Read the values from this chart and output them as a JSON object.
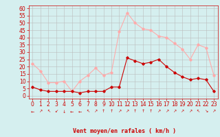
{
  "hours": [
    0,
    1,
    2,
    3,
    4,
    5,
    6,
    7,
    8,
    9,
    10,
    11,
    12,
    13,
    14,
    15,
    16,
    17,
    18,
    19,
    20,
    21,
    22,
    23
  ],
  "avg_wind": [
    6,
    4,
    3,
    3,
    3,
    3,
    2,
    3,
    3,
    3,
    6,
    6,
    26,
    24,
    22,
    23,
    25,
    20,
    16,
    13,
    11,
    12,
    11,
    3
  ],
  "gust_wind": [
    22,
    17,
    9,
    9,
    10,
    3,
    10,
    14,
    19,
    14,
    16,
    44,
    57,
    50,
    46,
    45,
    41,
    40,
    36,
    32,
    25,
    35,
    33,
    14
  ],
  "avg_color": "#cc0000",
  "gust_color": "#ffaaaa",
  "bg_color": "#d5efef",
  "grid_color": "#bbbbbb",
  "xlabel": "Vent moyen/en rafales ( km/h )",
  "wind_dirs": [
    "←",
    "↗",
    "↖",
    "↙",
    "↓",
    "←",
    "←",
    "↖",
    "↗",
    "↑",
    "↑",
    "↗",
    "↗",
    "↑",
    "↑",
    "↑",
    "↗",
    "↗",
    "↗",
    "↗",
    "↗",
    "↖",
    "↘",
    "↗"
  ],
  "yticks": [
    0,
    5,
    10,
    15,
    20,
    25,
    30,
    35,
    40,
    45,
    50,
    55,
    60
  ],
  "ylim": [
    -2,
    62
  ],
  "xlim": [
    -0.5,
    23.5
  ]
}
